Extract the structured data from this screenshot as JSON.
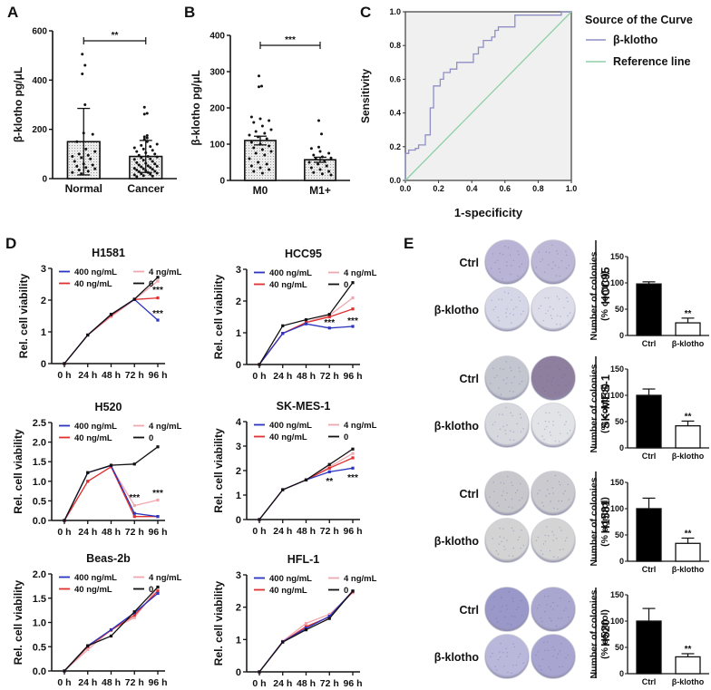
{
  "figure": {
    "panels": [
      "A",
      "B",
      "C",
      "D",
      "E"
    ]
  },
  "chart_data": [
    {
      "id": "A",
      "type": "bar",
      "subtype": "bar-with-scatter",
      "title": "",
      "ylabel": "β-klotho pg/μL",
      "xlabel": "",
      "categories": [
        "Normal",
        "Cancer"
      ],
      "values": [
        150,
        90
      ],
      "error_upper": [
        285,
        155
      ],
      "error_lower": [
        15,
        25
      ],
      "ylim": [
        0,
        600
      ],
      "yticks": [
        0,
        200,
        400,
        600
      ],
      "significance": {
        "between": [
          "Normal",
          "Cancer"
        ],
        "label": "**"
      },
      "points": {
        "Normal": [
          505,
          460,
          425,
          300,
          185,
          180,
          150,
          120,
          110,
          100,
          95,
          90,
          85,
          80,
          70,
          60,
          55,
          50,
          45,
          40,
          35,
          30,
          25,
          20
        ],
        "Cancer": [
          290,
          265,
          262,
          175,
          170,
          165,
          160,
          150,
          140,
          135,
          130,
          125,
          120,
          115,
          110,
          105,
          100,
          95,
          90,
          88,
          85,
          80,
          78,
          75,
          70,
          65,
          62,
          60,
          55,
          52,
          50,
          48,
          45,
          42,
          40,
          38,
          35,
          32,
          30,
          28,
          25,
          22,
          20,
          18,
          15,
          12,
          10,
          8
        ]
      },
      "fill": "#e6e6e6"
    },
    {
      "id": "B",
      "type": "bar",
      "subtype": "bar-with-scatter",
      "title": "",
      "ylabel": "β-klotho pg/μL",
      "xlabel": "",
      "categories": [
        "M0",
        "M1+"
      ],
      "values": [
        110,
        57
      ],
      "error_upper": [
        122,
        64
      ],
      "error_lower": [
        98,
        50
      ],
      "ylim": [
        0,
        400
      ],
      "yticks": [
        0,
        100,
        200,
        300,
        400
      ],
      "significance": {
        "between": [
          "M0",
          "M1+"
        ],
        "label": "***"
      },
      "points": {
        "M0": [
          288,
          260,
          258,
          175,
          170,
          165,
          160,
          150,
          140,
          135,
          130,
          125,
          120,
          115,
          105,
          100,
          95,
          90,
          85,
          80,
          75,
          70,
          60,
          50,
          45,
          40,
          35,
          30,
          25,
          20
        ],
        "M1+": [
          165,
          128,
          92,
          88,
          80,
          75,
          70,
          65,
          62,
          60,
          55,
          50,
          45,
          40,
          35,
          30,
          25,
          22,
          18,
          15
        ]
      },
      "fill": "#e6e6e6"
    },
    {
      "id": "C",
      "type": "line",
      "subtype": "roc",
      "title": "",
      "xlabel": "1-specificity",
      "ylabel": "Sensitivity",
      "xlim": [
        0,
        1
      ],
      "ylim": [
        0,
        1
      ],
      "xticks": [
        "0.0",
        "0.2",
        "0.4",
        "0.6",
        "0.8",
        "1.0"
      ],
      "yticks": [
        "0.0",
        "0.2",
        "0.4",
        "0.6",
        "0.8",
        "1.0"
      ],
      "legend": {
        "title": "Source of the Curve",
        "position": "right"
      },
      "series": [
        {
          "name": "β-klotho",
          "color": "#8e8ec4",
          "x": [
            0,
            0,
            0.02,
            0.02,
            0.06,
            0.06,
            0.08,
            0.08,
            0.12,
            0.12,
            0.15,
            0.15,
            0.17,
            0.17,
            0.21,
            0.21,
            0.23,
            0.23,
            0.27,
            0.27,
            0.31,
            0.31,
            0.41,
            0.41,
            0.44,
            0.44,
            0.47,
            0.47,
            0.52,
            0.52,
            0.54,
            0.54,
            0.56,
            0.56,
            0.66,
            0.66,
            0.94,
            0.94,
            1.0
          ],
          "y": [
            0,
            0.16,
            0.16,
            0.18,
            0.18,
            0.19,
            0.19,
            0.21,
            0.21,
            0.27,
            0.27,
            0.43,
            0.43,
            0.56,
            0.56,
            0.6,
            0.6,
            0.64,
            0.64,
            0.66,
            0.66,
            0.7,
            0.7,
            0.75,
            0.75,
            0.79,
            0.79,
            0.83,
            0.83,
            0.85,
            0.85,
            0.89,
            0.89,
            0.91,
            0.91,
            0.98,
            0.98,
            1.0,
            1.0
          ]
        },
        {
          "name": "Reference line",
          "color": "#8fd0a8",
          "x": [
            0,
            1
          ],
          "y": [
            0,
            1
          ]
        }
      ],
      "background": "#f0f0f0"
    },
    {
      "id": "D1",
      "type": "line",
      "title": "H1581",
      "xlabel": "",
      "ylabel": "Rel. cell viability",
      "categories": [
        "0 h",
        "24 h",
        "48 h",
        "72 h",
        "96 h"
      ],
      "ylim": [
        0,
        3
      ],
      "yticks": [
        "0",
        "1",
        "2",
        "3"
      ],
      "legend": {
        "position": "top-left"
      },
      "series": [
        {
          "name": "400 ng/mL",
          "color": "#2b35c0",
          "values": [
            0,
            0.9,
            1.55,
            2.02,
            1.37
          ]
        },
        {
          "name": "4 ng/mL",
          "color": "#f0a8b0",
          "values": [
            0,
            0.9,
            1.48,
            2.02,
            2.6
          ]
        },
        {
          "name": "40 ng/mL",
          "color": "#e03030",
          "values": [
            0,
            0.9,
            1.52,
            2.02,
            2.07
          ]
        },
        {
          "name": "0",
          "color": "#111111",
          "values": [
            0,
            0.9,
            1.55,
            2.03,
            2.72
          ]
        }
      ],
      "annotations": [
        {
          "x": "96 h",
          "y": 2.35,
          "text": "***"
        },
        {
          "x": "96 h",
          "y": 1.6,
          "text": "***"
        }
      ]
    },
    {
      "id": "D2",
      "type": "line",
      "title": "HCC95",
      "xlabel": "",
      "ylabel": "Rel. cell viability",
      "categories": [
        "0 h",
        "24 h",
        "48 h",
        "72 h",
        "96 h"
      ],
      "ylim": [
        0,
        3
      ],
      "yticks": [
        "0",
        "1",
        "2",
        "3"
      ],
      "legend": {
        "position": "top-left"
      },
      "series": [
        {
          "name": "400 ng/mL",
          "color": "#2b35c0",
          "values": [
            0,
            0.98,
            1.28,
            1.15,
            1.2
          ]
        },
        {
          "name": "4 ng/mL",
          "color": "#f0a8b0",
          "values": [
            0,
            0.98,
            1.33,
            1.55,
            2.1
          ]
        },
        {
          "name": "40 ng/mL",
          "color": "#e03030",
          "values": [
            0,
            0.98,
            1.32,
            1.5,
            1.75
          ]
        },
        {
          "name": "0",
          "color": "#111111",
          "values": [
            0,
            1.22,
            1.41,
            1.58,
            2.58
          ]
        }
      ],
      "annotations": [
        {
          "x": "72 h",
          "y": 1.35,
          "text": "***"
        },
        {
          "x": "96 h",
          "y": 1.4,
          "text": "***"
        }
      ]
    },
    {
      "id": "D3",
      "type": "line",
      "title": "H520",
      "xlabel": "",
      "ylabel": "Rel. cell viability",
      "categories": [
        "0 h",
        "24 h",
        "48 h",
        "72 h",
        "96 h"
      ],
      "ylim": [
        0,
        2.5
      ],
      "yticks": [
        "0.0",
        "0.5",
        "1.0",
        "1.5",
        "2.0",
        "2.5"
      ],
      "legend": {
        "position": "top-left"
      },
      "series": [
        {
          "name": "400 ng/mL",
          "color": "#2b35c0",
          "values": [
            0,
            1.22,
            1.4,
            0.18,
            0.1
          ]
        },
        {
          "name": "4 ng/mL",
          "color": "#f0a8b0",
          "values": [
            0,
            1.0,
            1.37,
            0.38,
            0.52
          ]
        },
        {
          "name": "40 ng/mL",
          "color": "#e03030",
          "values": [
            0,
            1.0,
            1.37,
            0.1,
            0.1
          ]
        },
        {
          "name": "0",
          "color": "#111111",
          "values": [
            0,
            1.22,
            1.41,
            1.44,
            1.88
          ]
        }
      ],
      "annotations": [
        {
          "x": "72 h",
          "y": 0.6,
          "text": "***"
        },
        {
          "x": "96 h",
          "y": 0.72,
          "text": "***"
        }
      ]
    },
    {
      "id": "D4",
      "type": "line",
      "title": "SK-MES-1",
      "xlabel": "",
      "ylabel": "Rel. cell viability",
      "categories": [
        "0 h",
        "24 h",
        "48 h",
        "72 h",
        "96 h"
      ],
      "ylim": [
        0,
        4
      ],
      "yticks": [
        "0",
        "1",
        "2",
        "3",
        "4"
      ],
      "legend": {
        "position": "top-left"
      },
      "series": [
        {
          "name": "400 ng/mL",
          "color": "#2b35c0",
          "values": [
            0,
            1.22,
            1.62,
            1.95,
            2.1
          ]
        },
        {
          "name": "4 ng/mL",
          "color": "#f0a8b0",
          "values": [
            0,
            1.22,
            1.62,
            2.15,
            2.7
          ]
        },
        {
          "name": "40 ng/mL",
          "color": "#e03030",
          "values": [
            0,
            1.22,
            1.62,
            2.1,
            2.52
          ]
        },
        {
          "name": "0",
          "color": "#111111",
          "values": [
            0,
            1.22,
            1.62,
            2.25,
            2.88
          ]
        }
      ],
      "annotations": [
        {
          "x": "72 h",
          "y": 1.6,
          "text": "**"
        },
        {
          "x": "96 h",
          "y": 1.75,
          "text": "***"
        }
      ]
    },
    {
      "id": "D5",
      "type": "line",
      "title": "Beas-2b",
      "xlabel": "",
      "ylabel": "Rel. cell viability",
      "categories": [
        "0 h",
        "24 h",
        "48 h",
        "72 h",
        "96 h"
      ],
      "ylim": [
        0,
        2
      ],
      "yticks": [
        "0.0",
        "0.5",
        "1.0",
        "1.5",
        "2.0"
      ],
      "legend": {
        "position": "top-left"
      },
      "series": [
        {
          "name": "400 ng/mL",
          "color": "#2b35c0",
          "values": [
            0,
            0.52,
            0.85,
            1.2,
            1.6
          ]
        },
        {
          "name": "4 ng/mL",
          "color": "#f0a8b0",
          "values": [
            0,
            0.44,
            0.85,
            1.1,
            1.72
          ]
        },
        {
          "name": "40 ng/mL",
          "color": "#e03030",
          "values": [
            0,
            0.5,
            0.84,
            1.15,
            1.65
          ]
        },
        {
          "name": "0",
          "color": "#111111",
          "values": [
            0,
            0.52,
            0.72,
            1.22,
            1.73
          ]
        }
      ],
      "annotations": []
    },
    {
      "id": "D6",
      "type": "line",
      "title": "HFL-1",
      "xlabel": "",
      "ylabel": "Rel. cell viability",
      "categories": [
        "0 h",
        "24 h",
        "48 h",
        "72 h",
        "96 h"
      ],
      "ylim": [
        0,
        3
      ],
      "yticks": [
        "0",
        "1",
        "2",
        "3"
      ],
      "legend": {
        "position": "top-left"
      },
      "series": [
        {
          "name": "400 ng/mL",
          "color": "#2b35c0",
          "values": [
            0,
            0.93,
            1.35,
            1.72,
            2.5
          ]
        },
        {
          "name": "4 ng/mL",
          "color": "#f0a8b0",
          "values": [
            0,
            0.95,
            1.5,
            1.78,
            2.45
          ]
        },
        {
          "name": "40 ng/mL",
          "color": "#e03030",
          "values": [
            0,
            0.93,
            1.4,
            1.7,
            2.48
          ]
        },
        {
          "name": "0",
          "color": "#111111",
          "values": [
            0,
            0.92,
            1.3,
            1.65,
            2.5
          ]
        }
      ],
      "annotations": []
    },
    {
      "id": "E1",
      "type": "bar",
      "title": "",
      "cell_line": "HCC95",
      "ylabel": "Number of colonies (% control)",
      "categories": [
        "Ctrl",
        "β-klotho"
      ],
      "values": [
        98,
        24
      ],
      "errors": [
        4,
        9
      ],
      "ylim": [
        0,
        150
      ],
      "yticks": [
        "0",
        "50",
        "100",
        "150"
      ],
      "significance": [
        "",
        "**"
      ]
    },
    {
      "id": "E2",
      "type": "bar",
      "title": "",
      "cell_line": "SK-MES-1",
      "ylabel": "Number of colonies (% control)",
      "categories": [
        "Ctrl",
        "β-klotho"
      ],
      "values": [
        100,
        42
      ],
      "errors": [
        12,
        9
      ],
      "ylim": [
        0,
        150
      ],
      "yticks": [
        "0",
        "50",
        "100",
        "150"
      ],
      "significance": [
        "",
        "**"
      ]
    },
    {
      "id": "E3",
      "type": "bar",
      "title": "",
      "cell_line": "H1581",
      "ylabel": "Number of colonies (% control)",
      "categories": [
        "Ctrl",
        "β-klotho"
      ],
      "values": [
        100,
        34
      ],
      "errors": [
        20,
        10
      ],
      "ylim": [
        0,
        150
      ],
      "yticks": [
        "0",
        "50",
        "100",
        "150"
      ],
      "significance": [
        "",
        "**"
      ]
    },
    {
      "id": "E4",
      "type": "bar",
      "title": "",
      "cell_line": "H520",
      "ylabel": "Number of colonies (% control)",
      "categories": [
        "Ctrl",
        "β-klotho"
      ],
      "values": [
        100,
        32
      ],
      "errors": [
        24,
        6
      ],
      "ylim": [
        0,
        150
      ],
      "yticks": [
        "0",
        "50",
        "100",
        "150"
      ],
      "significance": [
        "",
        "**"
      ]
    }
  ],
  "colony_images": {
    "row_labels": [
      "Ctrl",
      "β-klotho"
    ],
    "groups": [
      {
        "cell_line": "HCC95",
        "ctrl": [
          "#b9b4d6",
          "#bcb8d6"
        ],
        "treated": [
          "#d6d7e6",
          "#dcdde8"
        ]
      },
      {
        "cell_line": "SK-MES-1",
        "ctrl": [
          "#c4c6cf",
          "#8f7f9f"
        ],
        "treated": [
          "#d6d8dd",
          "#e2e3e6"
        ]
      },
      {
        "cell_line": "H1581",
        "ctrl": [
          "#c8c8cc",
          "#cacacf"
        ],
        "treated": [
          "#d2d3d2",
          "#d3d4d3"
        ]
      },
      {
        "cell_line": "H520",
        "ctrl": [
          "#9a98c8",
          "#a9a7cf"
        ],
        "treated": [
          "#b9b8da",
          "#a8a6d0"
        ]
      }
    ]
  }
}
